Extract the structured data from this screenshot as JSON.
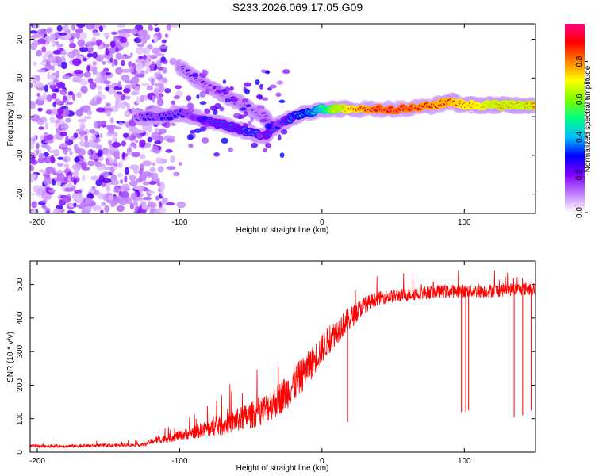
{
  "title": "S233.2026.069.17.05.G09",
  "chart_data": [
    {
      "type": "heatmap",
      "xlabel": "Height of straight line (km)",
      "ylabel": "Frequency (Hz)",
      "xlim": [
        -205,
        150
      ],
      "ylim": [
        -25,
        24
      ],
      "xticks": [
        -200,
        -100,
        0,
        100
      ],
      "yticks": [
        -20,
        -10,
        0,
        10,
        20
      ],
      "colorbar": {
        "label": "Normalized spectral amplitude",
        "range": [
          0,
          1
        ],
        "ticks": [
          "0.0",
          "0.2",
          "0.4",
          "0.6",
          "0.8"
        ],
        "tick_values": [
          0,
          0.2,
          0.4,
          0.6,
          0.8
        ],
        "stops": [
          "#ffffff",
          "#c080ff",
          "#8000ff",
          "#0000ff",
          "#00c0ff",
          "#00ff80",
          "#80ff00",
          "#ffff00",
          "#ff8000",
          "#ff0000",
          "#ff0080"
        ]
      },
      "ridge": {
        "x": [
          -130,
          -120,
          -110,
          -100,
          -90,
          -80,
          -70,
          -60,
          -50,
          -40,
          -35,
          -30,
          -20,
          -10,
          0,
          10,
          20,
          40,
          60,
          80,
          90,
          100,
          110,
          120,
          130,
          140,
          150
        ],
        "y": [
          0,
          0,
          0,
          1,
          0,
          -1,
          -2,
          -3,
          -4,
          -5,
          -3,
          -2,
          0,
          1,
          2,
          2,
          2,
          2,
          2,
          3,
          4,
          3,
          3,
          3,
          3,
          3,
          3
        ],
        "amplitude": [
          0.25,
          0.3,
          0.3,
          0.3,
          0.3,
          0.35,
          0.35,
          0.35,
          0.4,
          0.35,
          0.35,
          0.3,
          0.4,
          0.45,
          0.55,
          0.75,
          0.85,
          0.95,
          0.95,
          0.9,
          0.9,
          0.85,
          0.85,
          0.8,
          0.8,
          0.8,
          0.8
        ]
      },
      "branch": {
        "x": [
          -100,
          -90,
          -80,
          -70,
          -60,
          -50,
          -40,
          -35
        ],
        "y": [
          13,
          10,
          8,
          6,
          4,
          2,
          0,
          -3
        ],
        "amplitude": [
          0.25,
          0.25,
          0.2,
          0.2,
          0.25,
          0.25,
          0.2,
          0.2
        ]
      },
      "noise": {
        "x_range": [
          -205,
          -110
        ],
        "y_range": [
          -25,
          24
        ],
        "amplitude": 0.12
      }
    },
    {
      "type": "line",
      "xlabel": "Height of straight line (km)",
      "ylabel": "SNR (10 * v/v)",
      "xlim": [
        -205,
        150
      ],
      "ylim": [
        0,
        570
      ],
      "xticks": [
        -200,
        -100,
        0,
        100
      ],
      "yticks": [
        0,
        100,
        200,
        300,
        400,
        500
      ],
      "color": "#ff0000",
      "x": [
        -205,
        -180,
        -150,
        -125,
        -118,
        -110,
        -100,
        -90,
        -80,
        -70,
        -60,
        -50,
        -40,
        -30,
        -20,
        -10,
        0,
        10,
        20,
        30,
        40,
        50,
        60,
        70,
        80,
        90,
        100,
        110,
        120,
        130,
        140,
        150
      ],
      "y": [
        18,
        18,
        20,
        22,
        35,
        40,
        50,
        60,
        70,
        80,
        95,
        110,
        130,
        160,
        200,
        250,
        310,
        360,
        400,
        440,
        460,
        465,
        470,
        475,
        478,
        480,
        480,
        480,
        482,
        485,
        487,
        488
      ],
      "spread": [
        10,
        10,
        10,
        10,
        20,
        25,
        30,
        40,
        50,
        60,
        70,
        80,
        90,
        100,
        110,
        100,
        90,
        80,
        70,
        50,
        40,
        40,
        40,
        40,
        40,
        40,
        40,
        40,
        40,
        40,
        40,
        40
      ],
      "dropouts": [
        {
          "x": 98,
          "y": 120
        },
        {
          "x": 101,
          "y": 120
        },
        {
          "x": 103,
          "y": 125
        },
        {
          "x": 135,
          "y": 105
        },
        {
          "x": 141,
          "y": 110
        },
        {
          "x": 147,
          "y": 125
        },
        {
          "x": 18,
          "y": 90
        }
      ]
    }
  ]
}
